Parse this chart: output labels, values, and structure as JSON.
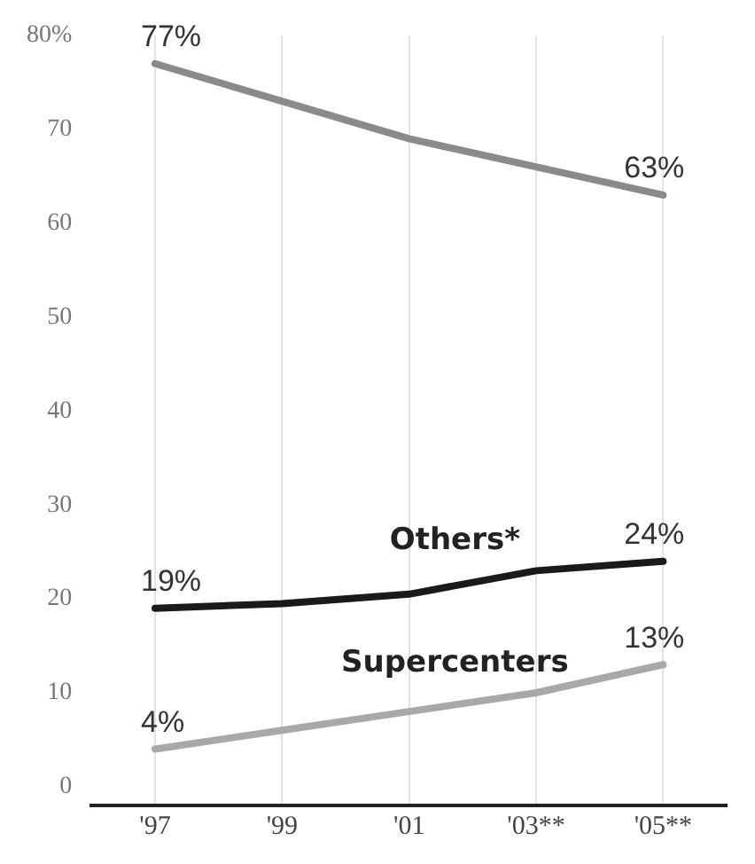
{
  "chart_data": {
    "type": "line",
    "categories": [
      "'97",
      "'99",
      "'01",
      "'03**",
      "'05**"
    ],
    "series": [
      {
        "color": "#8a8a8a",
        "values": [
          77,
          73,
          69,
          66,
          63
        ],
        "value_labels": [
          "77%",
          null,
          null,
          null,
          "63%"
        ]
      },
      {
        "name": "Others*",
        "color": "#1a1a1a",
        "values": [
          19,
          19.5,
          20.5,
          23,
          24
        ],
        "value_labels": [
          "19%",
          null,
          null,
          null,
          "24%"
        ]
      },
      {
        "name": "Supercenters",
        "color": "#a8a8a8",
        "values": [
          4,
          6,
          8,
          10,
          13
        ],
        "value_labels": [
          "4%",
          null,
          null,
          null,
          "13%"
        ]
      }
    ],
    "ylim": [
      -2,
      80
    ],
    "yticks": [
      0,
      10,
      20,
      30,
      40,
      50,
      60,
      70,
      {
        "value": 80,
        "label": "80%"
      }
    ],
    "grid": "x",
    "legend": false,
    "marker": "none",
    "line_style": "solid"
  }
}
